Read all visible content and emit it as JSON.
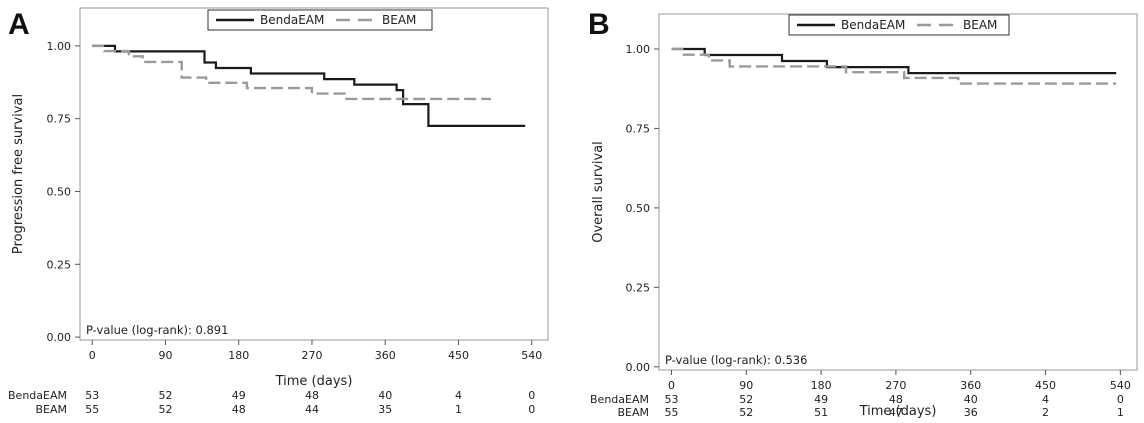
{
  "colors": {
    "series_1": "#1a1a1a",
    "series_2": "#9a9a9a",
    "frame": "#9a9a9a",
    "text": "#222222"
  },
  "chart_data": [
    {
      "panel_label": "A",
      "type": "line",
      "subtype": "kaplan-meier step",
      "xlabel": "Time (days)",
      "ylabel": "Progression free survival",
      "xlim": [
        -15,
        560
      ],
      "ylim": [
        -0.01,
        1.13
      ],
      "x_ticks": [
        "0",
        "90",
        "180",
        "270",
        "360",
        "450",
        "540"
      ],
      "y_ticks": [
        "0.00",
        "0.25",
        "0.50",
        "0.75",
        "1.00"
      ],
      "grid": false,
      "legend_position": "top-center",
      "annotation": "P-value (log-rank): 0.891",
      "series": [
        {
          "name": "BendaEAM",
          "style": "solid",
          "points": [
            [
              0,
              1.0
            ],
            [
              28,
              0.981
            ],
            [
              138,
              0.943
            ],
            [
              152,
              0.924
            ],
            [
              195,
              0.905
            ],
            [
              285,
              0.886
            ],
            [
              322,
              0.867
            ],
            [
              374,
              0.848
            ],
            [
              382,
              0.8
            ],
            [
              413,
              0.725
            ],
            [
              532,
              0.725
            ]
          ]
        },
        {
          "name": "BEAM",
          "style": "dashed",
          "points": [
            [
              0,
              1.0
            ],
            [
              15,
              0.982
            ],
            [
              45,
              0.964
            ],
            [
              62,
              0.945
            ],
            [
              110,
              0.891
            ],
            [
              140,
              0.873
            ],
            [
              190,
              0.855
            ],
            [
              270,
              0.836
            ],
            [
              310,
              0.818
            ],
            [
              490,
              0.818
            ]
          ]
        }
      ],
      "risk_table": {
        "times": [
          "0",
          "90",
          "180",
          "270",
          "360",
          "450",
          "540"
        ],
        "rows": [
          {
            "name": "BendaEAM",
            "values": [
              "53",
              "52",
              "49",
              "48",
              "40",
              "4",
              "0"
            ]
          },
          {
            "name": "BEAM",
            "values": [
              "55",
              "52",
              "48",
              "44",
              "35",
              "1",
              "0"
            ]
          }
        ]
      }
    },
    {
      "panel_label": "B",
      "type": "line",
      "subtype": "kaplan-meier step",
      "xlabel": "Time (days)",
      "ylabel": "Overall survival",
      "xlim": [
        -15,
        560
      ],
      "ylim": [
        -0.01,
        1.11
      ],
      "x_ticks": [
        "0",
        "90",
        "180",
        "270",
        "360",
        "450",
        "540"
      ],
      "y_ticks": [
        "0.00",
        "0.25",
        "0.50",
        "0.75",
        "1.00"
      ],
      "grid": false,
      "legend_position": "top-center",
      "annotation": "P-value (log-rank): 0.536",
      "series": [
        {
          "name": "BendaEAM",
          "style": "solid",
          "points": [
            [
              0,
              1.0
            ],
            [
              40,
              0.981
            ],
            [
              133,
              0.962
            ],
            [
              187,
              0.943
            ],
            [
              285,
              0.924
            ],
            [
              535,
              0.924
            ]
          ]
        },
        {
          "name": "BEAM",
          "style": "dashed",
          "points": [
            [
              0,
              1.0
            ],
            [
              15,
              0.982
            ],
            [
              45,
              0.964
            ],
            [
              70,
              0.945
            ],
            [
              210,
              0.927
            ],
            [
              280,
              0.909
            ],
            [
              345,
              0.891
            ],
            [
              535,
              0.891
            ]
          ]
        }
      ],
      "risk_table": {
        "times": [
          "0",
          "90",
          "180",
          "270",
          "360",
          "450",
          "540"
        ],
        "rows": [
          {
            "name": "BendaEAM",
            "values": [
              "53",
              "52",
              "49",
              "48",
              "40",
              "4",
              "0"
            ]
          },
          {
            "name": "BEAM",
            "values": [
              "55",
              "52",
              "51",
              "47",
              "36",
              "2",
              "1"
            ]
          }
        ]
      }
    }
  ]
}
